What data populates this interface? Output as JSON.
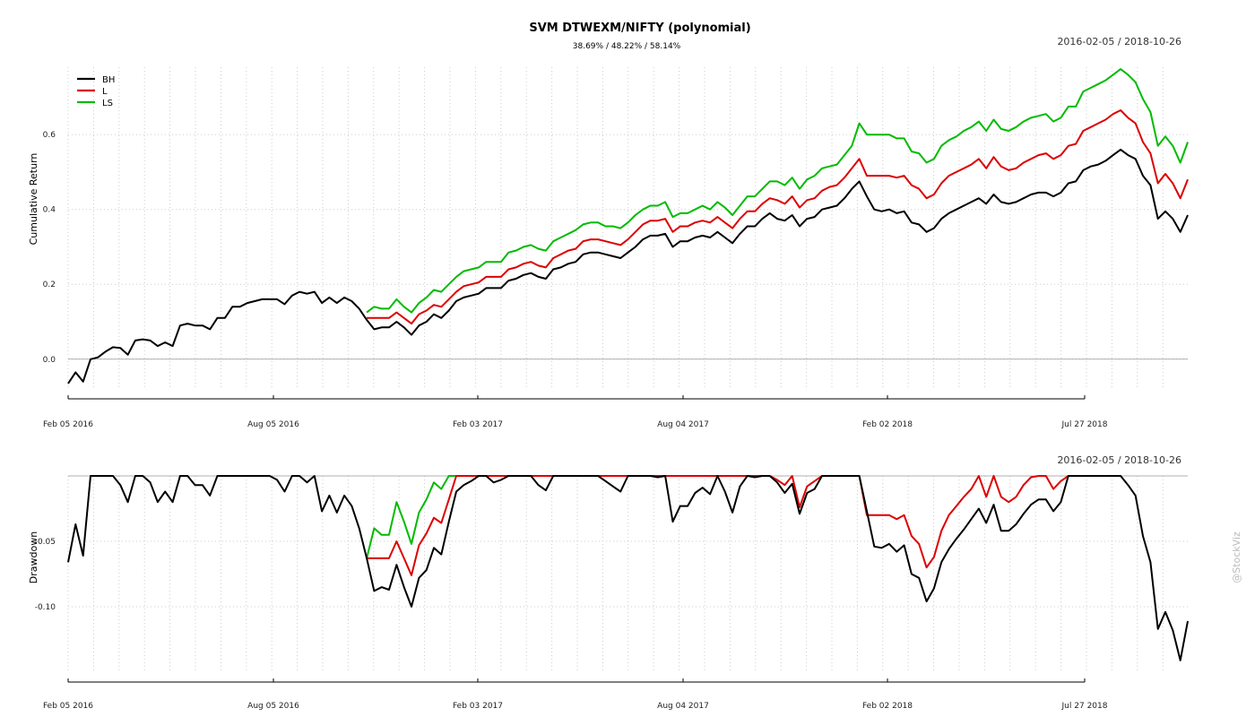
{
  "chart_data": [
    {
      "type": "line",
      "title": "SVM DTWEXM/NIFTY (polynomial)",
      "subtitle": "38.69% / 48.22% / 58.14%",
      "date_range": "2016-02-05 / 2018-10-26",
      "ylabel": "Cumulative Return",
      "ylim": [
        -0.07,
        0.78
      ],
      "y_ticks": [
        0.0,
        0.2,
        0.4,
        0.6
      ],
      "y_tick_labels": [
        "0.0",
        "0.2",
        "0.4",
        "0.6"
      ],
      "x_tick_labels": [
        "Feb 05 2016",
        "Aug 05 2016",
        "Feb 03 2017",
        "Aug 04 2017",
        "Feb 02 2018",
        "Jul 27 2018"
      ],
      "grid": true,
      "legend_position": "top-left",
      "series": [
        {
          "name": "BH",
          "color": "#000000",
          "values": [
            -0.065,
            -0.035,
            -0.06,
            0.0,
            0.005,
            0.02,
            0.032,
            0.03,
            0.012,
            0.05,
            0.053,
            0.05,
            0.035,
            0.045,
            0.035,
            0.09,
            0.095,
            0.09,
            0.09,
            0.08,
            0.11,
            0.11,
            0.14,
            0.14,
            0.15,
            0.155,
            0.16,
            0.16,
            0.16,
            0.147,
            0.17,
            0.18,
            0.175,
            0.18,
            0.15,
            0.165,
            0.15,
            0.165,
            0.155,
            0.135,
            0.105,
            0.08,
            0.085,
            0.085,
            0.1,
            0.085,
            0.065,
            0.09,
            0.1,
            0.12,
            0.11,
            0.13,
            0.155,
            0.165,
            0.17,
            0.175,
            0.19,
            0.19,
            0.19,
            0.21,
            0.215,
            0.225,
            0.23,
            0.22,
            0.215,
            0.24,
            0.245,
            0.255,
            0.26,
            0.28,
            0.285,
            0.285,
            0.28,
            0.275,
            0.27,
            0.285,
            0.3,
            0.32,
            0.33,
            0.33,
            0.335,
            0.3,
            0.315,
            0.315,
            0.325,
            0.33,
            0.325,
            0.34,
            0.325,
            0.31,
            0.335,
            0.355,
            0.355,
            0.375,
            0.39,
            0.375,
            0.37,
            0.385,
            0.355,
            0.375,
            0.38,
            0.4,
            0.405,
            0.41,
            0.43,
            0.455,
            0.475,
            0.435,
            0.4,
            0.395,
            0.4,
            0.39,
            0.395,
            0.365,
            0.36,
            0.34,
            0.35,
            0.375,
            0.39,
            0.4,
            0.41,
            0.42,
            0.43,
            0.415,
            0.44,
            0.42,
            0.415,
            0.42,
            0.43,
            0.44,
            0.445,
            0.445,
            0.435,
            0.445,
            0.47,
            0.475,
            0.505,
            0.515,
            0.52,
            0.53,
            0.545,
            0.56,
            0.545,
            0.535,
            0.49,
            0.465,
            0.375,
            0.395,
            0.375,
            0.34,
            0.385
          ]
        },
        {
          "name": "L",
          "color": "#dd0000",
          "values": [
            null,
            null,
            null,
            null,
            null,
            null,
            null,
            null,
            null,
            null,
            null,
            null,
            null,
            null,
            null,
            null,
            null,
            null,
            null,
            null,
            null,
            null,
            null,
            null,
            null,
            null,
            null,
            null,
            null,
            null,
            null,
            null,
            null,
            null,
            null,
            null,
            null,
            null,
            null,
            null,
            0.11,
            0.11,
            0.11,
            0.11,
            0.125,
            0.11,
            0.095,
            0.12,
            0.13,
            0.145,
            0.14,
            0.16,
            0.18,
            0.195,
            0.2,
            0.205,
            0.22,
            0.22,
            0.22,
            0.24,
            0.245,
            0.255,
            0.26,
            0.25,
            0.245,
            0.27,
            0.28,
            0.29,
            0.295,
            0.315,
            0.32,
            0.32,
            0.315,
            0.31,
            0.305,
            0.32,
            0.34,
            0.36,
            0.37,
            0.37,
            0.375,
            0.34,
            0.355,
            0.355,
            0.365,
            0.37,
            0.365,
            0.38,
            0.365,
            0.35,
            0.375,
            0.395,
            0.395,
            0.415,
            0.43,
            0.425,
            0.415,
            0.435,
            0.405,
            0.425,
            0.43,
            0.45,
            0.46,
            0.465,
            0.485,
            0.51,
            0.535,
            0.49,
            0.49,
            0.49,
            0.49,
            0.485,
            0.49,
            0.465,
            0.455,
            0.43,
            0.44,
            0.47,
            0.49,
            0.5,
            0.51,
            0.52,
            0.535,
            0.51,
            0.54,
            0.515,
            0.505,
            0.51,
            0.525,
            0.535,
            0.545,
            0.55,
            0.535,
            0.545,
            0.57,
            0.575,
            0.61,
            0.62,
            0.63,
            0.64,
            0.655,
            0.665,
            0.645,
            0.63,
            0.58,
            0.55,
            0.47,
            0.495,
            0.47,
            0.43,
            0.48
          ]
        },
        {
          "name": "LS",
          "color": "#00bb00",
          "values": [
            null,
            null,
            null,
            null,
            null,
            null,
            null,
            null,
            null,
            null,
            null,
            null,
            null,
            null,
            null,
            null,
            null,
            null,
            null,
            null,
            null,
            null,
            null,
            null,
            null,
            null,
            null,
            null,
            null,
            null,
            null,
            null,
            null,
            null,
            null,
            null,
            null,
            null,
            null,
            null,
            0.125,
            0.14,
            0.135,
            0.135,
            0.16,
            0.14,
            0.125,
            0.15,
            0.165,
            0.185,
            0.18,
            0.2,
            0.22,
            0.235,
            0.24,
            0.245,
            0.26,
            0.26,
            0.26,
            0.285,
            0.29,
            0.3,
            0.305,
            0.295,
            0.29,
            0.315,
            0.325,
            0.335,
            0.345,
            0.36,
            0.365,
            0.365,
            0.355,
            0.355,
            0.35,
            0.365,
            0.385,
            0.4,
            0.41,
            0.41,
            0.42,
            0.38,
            0.39,
            0.39,
            0.4,
            0.41,
            0.4,
            0.42,
            0.405,
            0.385,
            0.41,
            0.435,
            0.435,
            0.455,
            0.475,
            0.475,
            0.465,
            0.485,
            0.455,
            0.48,
            0.49,
            0.51,
            0.515,
            0.52,
            0.545,
            0.57,
            0.63,
            0.6,
            0.6,
            0.6,
            0.6,
            0.59,
            0.59,
            0.555,
            0.55,
            0.525,
            0.535,
            0.57,
            0.585,
            0.595,
            0.61,
            0.62,
            0.635,
            0.61,
            0.64,
            0.615,
            0.61,
            0.62,
            0.635,
            0.645,
            0.65,
            0.655,
            0.635,
            0.645,
            0.675,
            0.675,
            0.715,
            0.725,
            0.735,
            0.745,
            0.76,
            0.775,
            0.76,
            0.74,
            0.695,
            0.66,
            0.57,
            0.595,
            0.57,
            0.525,
            0.58
          ]
        }
      ]
    },
    {
      "type": "line",
      "date_range": "2016-02-05 / 2018-10-26",
      "ylabel": "Drawdown",
      "ylim": [
        -0.148,
        0.0
      ],
      "y_ticks": [
        -0.05,
        -0.1
      ],
      "y_tick_labels": [
        "-0.05",
        "-0.10"
      ],
      "x_tick_labels": [
        "Feb 05 2016",
        "Aug 05 2016",
        "Feb 03 2017",
        "Aug 04 2017",
        "Feb 02 2018",
        "Jul 27 2018"
      ],
      "grid": true,
      "series": [
        {
          "name": "BH",
          "color": "#000000",
          "values": [
            -0.066,
            -0.037,
            -0.061,
            0.0,
            0.0,
            0.0,
            0.0,
            -0.007,
            -0.02,
            0.0,
            0.0,
            -0.005,
            -0.02,
            -0.012,
            -0.02,
            0.0,
            0.0,
            -0.007,
            -0.007,
            -0.015,
            0.0,
            0.0,
            0.0,
            0.0,
            0.0,
            0.0,
            0.0,
            0.0,
            -0.003,
            -0.012,
            0.0,
            0.0,
            -0.005,
            0.0,
            -0.027,
            -0.015,
            -0.028,
            -0.015,
            -0.023,
            -0.04,
            -0.063,
            -0.088,
            -0.085,
            -0.087,
            -0.068,
            -0.085,
            -0.1,
            -0.078,
            -0.072,
            -0.055,
            -0.06,
            -0.035,
            -0.012,
            -0.007,
            -0.004,
            0.0,
            0.0,
            -0.005,
            -0.003,
            0.0,
            0.0,
            0.0,
            0.0,
            -0.007,
            -0.011,
            0.0,
            0.0,
            0.0,
            0.0,
            0.0,
            0.0,
            0.0,
            -0.004,
            -0.008,
            -0.012,
            0.0,
            0.0,
            0.0,
            0.0,
            -0.001,
            0.0,
            -0.035,
            -0.023,
            -0.023,
            -0.013,
            -0.009,
            -0.014,
            0.0,
            -0.012,
            -0.028,
            -0.008,
            0.0,
            -0.001,
            0.0,
            0.0,
            -0.005,
            -0.013,
            -0.006,
            -0.029,
            -0.013,
            -0.01,
            0.0,
            0.0,
            0.0,
            0.0,
            0.0,
            0.0,
            -0.027,
            -0.054,
            -0.055,
            -0.052,
            -0.058,
            -0.053,
            -0.075,
            -0.078,
            -0.096,
            -0.086,
            -0.066,
            -0.056,
            -0.048,
            -0.041,
            -0.033,
            -0.025,
            -0.036,
            -0.022,
            -0.042,
            -0.042,
            -0.037,
            -0.029,
            -0.022,
            -0.018,
            -0.018,
            -0.027,
            -0.02,
            0.0,
            0.0,
            0.0,
            0.0,
            0.0,
            0.0,
            0.0,
            0.0,
            -0.007,
            -0.015,
            -0.046,
            -0.066,
            -0.117,
            -0.104,
            -0.118,
            -0.141,
            -0.111
          ]
        },
        {
          "name": "L",
          "color": "#dd0000",
          "values": [
            null,
            null,
            null,
            null,
            null,
            null,
            null,
            null,
            null,
            null,
            null,
            null,
            null,
            null,
            null,
            null,
            null,
            null,
            null,
            null,
            null,
            null,
            null,
            null,
            null,
            null,
            null,
            null,
            null,
            null,
            null,
            null,
            null,
            null,
            null,
            null,
            null,
            null,
            null,
            null,
            -0.063,
            -0.063,
            -0.063,
            -0.063,
            -0.05,
            -0.063,
            -0.076,
            -0.053,
            -0.044,
            -0.032,
            -0.036,
            -0.018,
            0.0,
            0.0,
            0.0,
            0.0,
            0.0,
            0.0,
            0.0,
            0.0,
            0.0,
            0.0,
            0.0,
            0.0,
            0.0,
            0.0,
            0.0,
            0.0,
            0.0,
            0.0,
            0.0,
            0.0,
            0.0,
            0.0,
            0.0,
            0.0,
            0.0,
            0.0,
            0.0,
            0.0,
            0.0,
            0.0,
            0.0,
            0.0,
            0.0,
            0.0,
            0.0,
            0.0,
            0.0,
            0.0,
            0.0,
            0.0,
            0.0,
            0.0,
            0.0,
            -0.003,
            -0.007,
            0.0,
            -0.024,
            -0.008,
            -0.004,
            0.0,
            0.0,
            0.0,
            0.0,
            0.0,
            0.0,
            -0.03,
            -0.03,
            -0.03,
            -0.03,
            -0.033,
            -0.03,
            -0.046,
            -0.052,
            -0.07,
            -0.062,
            -0.042,
            -0.03,
            -0.023,
            -0.016,
            -0.01,
            0.0,
            -0.016,
            0.0,
            -0.016,
            -0.02,
            -0.016,
            -0.007,
            -0.001,
            0.0,
            0.0,
            -0.01,
            -0.004,
            0.0,
            0.0,
            0.0,
            0.0,
            0.0,
            0.0,
            0.0,
            0.0,
            null,
            null,
            null,
            null,
            null,
            null,
            null,
            null,
            null
          ]
        },
        {
          "name": "LS",
          "color": "#00bb00",
          "values": [
            null,
            null,
            null,
            null,
            null,
            null,
            null,
            null,
            null,
            null,
            null,
            null,
            null,
            null,
            null,
            null,
            null,
            null,
            null,
            null,
            null,
            null,
            null,
            null,
            null,
            null,
            null,
            null,
            null,
            null,
            null,
            null,
            null,
            null,
            null,
            null,
            null,
            null,
            null,
            null,
            -0.063,
            -0.04,
            -0.045,
            -0.045,
            -0.02,
            -0.035,
            -0.052,
            -0.028,
            -0.018,
            -0.005,
            -0.01,
            0.0,
            0.0,
            null,
            null,
            null,
            null,
            null,
            null,
            null,
            null,
            null,
            null,
            null,
            null,
            null,
            null,
            null,
            null,
            null,
            null,
            null,
            null,
            null,
            null,
            null,
            null,
            null,
            null,
            null,
            null,
            null,
            null,
            null,
            null,
            null,
            null,
            null,
            null,
            null,
            null,
            null,
            null,
            null,
            null,
            null,
            null,
            null,
            null,
            null,
            null,
            null,
            null,
            null,
            null,
            null,
            null,
            null,
            null,
            null,
            null,
            null,
            null,
            null,
            null,
            null,
            null,
            null,
            null,
            null,
            null,
            null,
            null,
            null,
            null,
            null,
            null,
            null,
            null,
            null,
            null,
            null,
            null,
            null,
            null,
            null,
            null,
            null,
            null,
            null,
            null,
            null,
            null,
            null,
            null,
            null,
            null,
            null,
            null,
            null,
            null,
            null
          ]
        }
      ]
    }
  ],
  "watermark": "@StockViz"
}
